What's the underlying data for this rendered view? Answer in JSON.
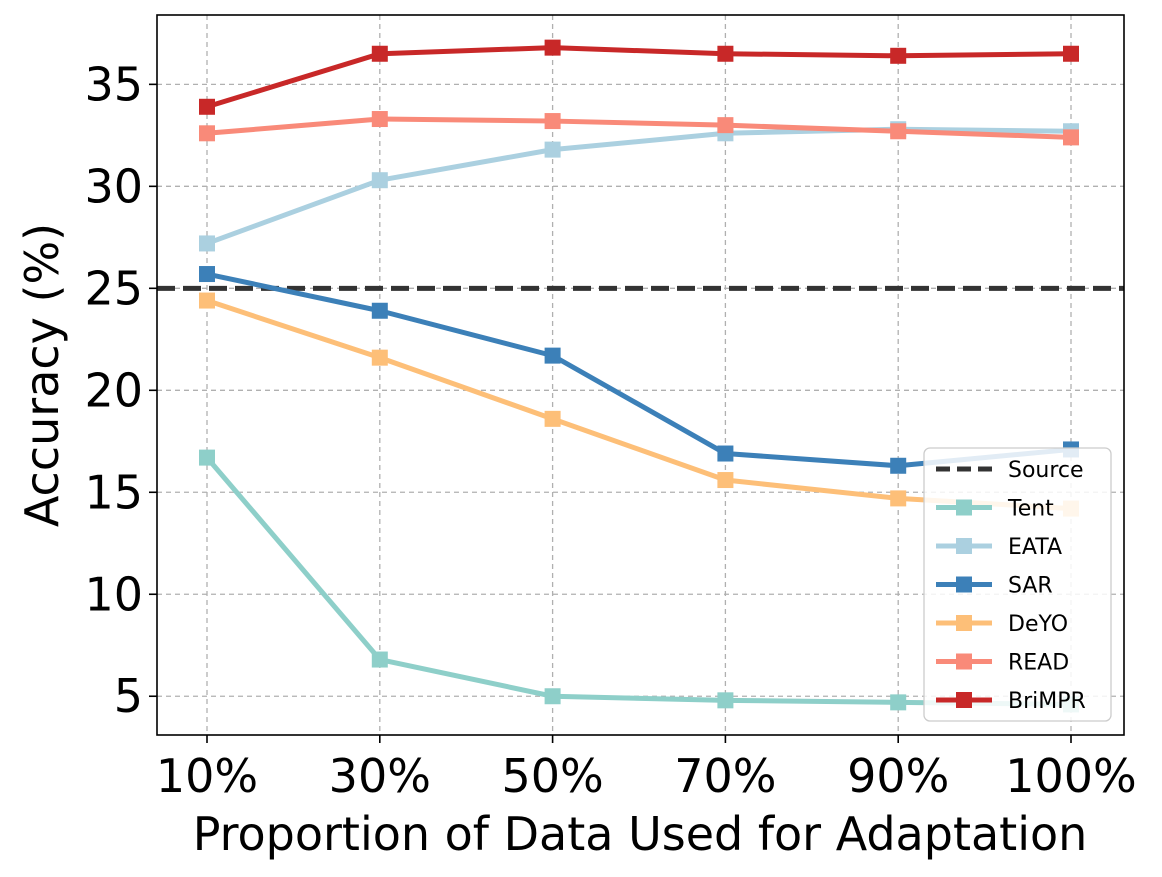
{
  "chart_data": {
    "type": "line",
    "title": "",
    "xlabel": "Proportion of Data Used for Adaptation",
    "ylabel": "Accuracy (%)",
    "categories": [
      "10%",
      "30%",
      "50%",
      "70%",
      "90%",
      "100%"
    ],
    "ylim": [
      3.1,
      38.4
    ],
    "yticks": [
      5,
      10,
      15,
      20,
      25,
      30,
      35
    ],
    "grid": true,
    "legend_position": "lower-right",
    "reference_line": {
      "name": "Source",
      "value": 25.0,
      "color": "#333333",
      "style": "dashed"
    },
    "series": [
      {
        "name": "Tent",
        "color": "#8ecfc9",
        "values": [
          16.7,
          6.8,
          5.0,
          4.8,
          4.7,
          4.6
        ]
      },
      {
        "name": "EATA",
        "color": "#abd0e0",
        "values": [
          27.2,
          30.3,
          31.8,
          32.6,
          32.8,
          32.7
        ]
      },
      {
        "name": "SAR",
        "color": "#3c80b8",
        "values": [
          25.7,
          23.9,
          21.7,
          16.9,
          16.3,
          17.1
        ]
      },
      {
        "name": "DeYO",
        "color": "#fdbf78",
        "values": [
          24.4,
          21.6,
          18.6,
          15.6,
          14.7,
          14.2
        ]
      },
      {
        "name": "READ",
        "color": "#f98a79",
        "values": [
          32.6,
          33.3,
          33.2,
          33.0,
          32.7,
          32.4
        ]
      },
      {
        "name": "BriMPR",
        "color": "#c82828",
        "values": [
          33.9,
          36.5,
          36.8,
          36.5,
          36.4,
          36.5
        ]
      }
    ]
  }
}
